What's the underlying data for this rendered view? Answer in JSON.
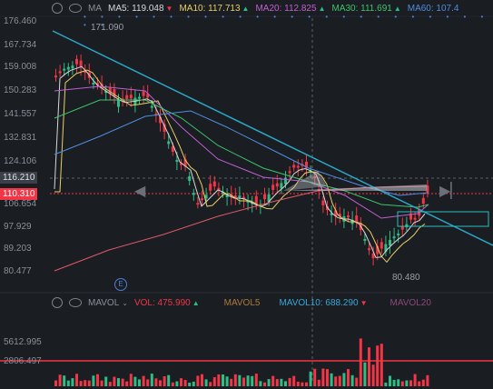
{
  "main_indicator": {
    "name": "MA",
    "items": [
      {
        "label": "MA5: 119.048",
        "color": "#d8d8d8",
        "arrow": "down"
      },
      {
        "label": "MA10: 117.713",
        "color": "#e6d066",
        "arrow": "up"
      },
      {
        "label": "MA20: 112.825",
        "color": "#c060d0",
        "arrow": "up"
      },
      {
        "label": "MA30: 111.691",
        "color": "#3ec46d",
        "arrow": "up"
      },
      {
        "label": "MA60: 107.4",
        "color": "#4f8de0",
        "arrow": ""
      }
    ]
  },
  "price_axis": [
    "176.460",
    "167.734",
    "159.008",
    "150.283",
    "141.557",
    "132.831",
    "124.106",
    "116.210",
    "106.654",
    "97.929",
    "89.203",
    "80.477"
  ],
  "current_price": "110.310",
  "hover_price": "116.210",
  "annotations": {
    "high": "171.090",
    "low": "80.480"
  },
  "volume_indicator": {
    "name": "MAVOL",
    "items": [
      {
        "label": "VOL: 475.990",
        "color": "#f23645",
        "arrow": "up"
      },
      {
        "label": "MAVOL5",
        "color": "#b07a3a",
        "arrow": ""
      },
      {
        "label": "MAVOL10: 688.290",
        "color": "#3aa8d8",
        "arrow": "down"
      },
      {
        "label": "MAVOL20",
        "color": "#8a4a7a",
        "arrow": ""
      }
    ]
  },
  "volume_axis": [
    "5612.995",
    "2806.497"
  ],
  "badge_e": "E",
  "colors": {
    "up": "#2ebd85",
    "down": "#f23645",
    "trend": "#2aa8c8",
    "box": "#2ec0c0",
    "bg": "#1a1d22"
  }
}
